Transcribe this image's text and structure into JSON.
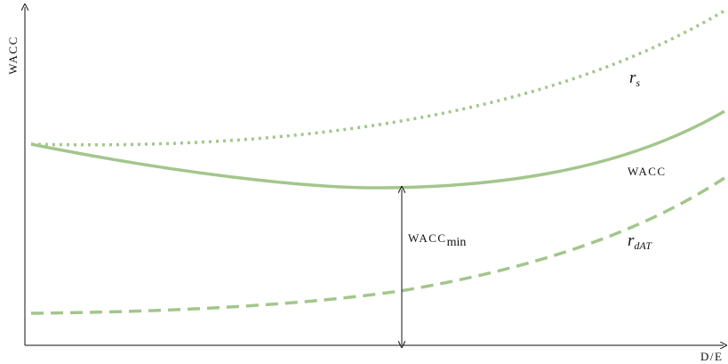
{
  "axes": {
    "y_label": "WACC",
    "x_label": "D/E"
  },
  "curves": [
    {
      "main": "r",
      "sub": "s"
    },
    {
      "main": "WACC"
    },
    {
      "main": "r",
      "sub": "dAT"
    }
  ],
  "annotation": {
    "main": "WACC",
    "sub": "min"
  }
}
